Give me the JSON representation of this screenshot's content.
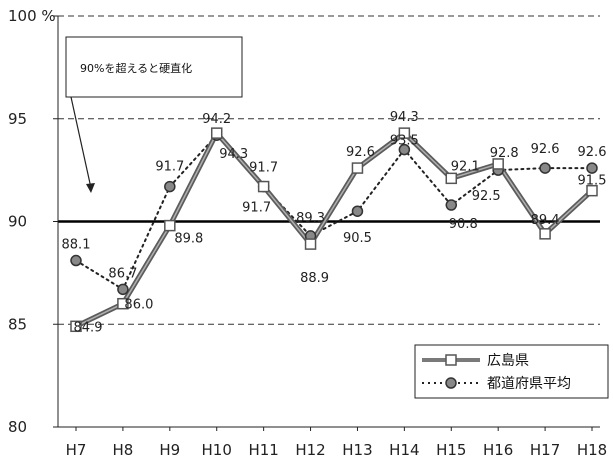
{
  "chart_data": {
    "type": "line",
    "categories": [
      "H7",
      "H8",
      "H9",
      "H10",
      "H11",
      "H12",
      "H13",
      "H14",
      "H15",
      "H16",
      "H17",
      "H18"
    ],
    "series": [
      {
        "name": "広島県",
        "values": [
          84.9,
          86.0,
          89.8,
          94.3,
          91.7,
          88.9,
          92.6,
          94.3,
          92.1,
          92.8,
          89.4,
          91.5
        ],
        "labels": [
          "84.9",
          "86.0",
          "89.8",
          "94.3",
          "91.7",
          "88.9",
          "92.6",
          "94.3",
          "92.1",
          "92.8",
          "89.4",
          "91.5"
        ],
        "style": "solid-thick-square",
        "color": "#7a7a7a"
      },
      {
        "name": "都道府県平均",
        "values": [
          88.1,
          86.7,
          91.7,
          94.2,
          91.7,
          89.3,
          90.5,
          93.5,
          90.8,
          92.5,
          92.6,
          92.6
        ],
        "labels": [
          "88.1",
          "86.7",
          "91.7",
          "94.2",
          "91.7",
          "89.3",
          "90.5",
          "93.5",
          "90.8",
          "92.5",
          "92.6",
          "92.6"
        ],
        "style": "dotted-circle",
        "color": "#222222"
      }
    ],
    "ylim": [
      80,
      100
    ],
    "yticks": [
      "80",
      "85",
      "90",
      "95",
      "100 %"
    ],
    "dashed_gridlines": [
      85,
      95,
      100
    ],
    "reference_line": 90,
    "annotation": "90%を超えると硬直化",
    "legend_position": "bottom-right",
    "colors": {
      "guangdao": "#7a7a7a",
      "average": "#222222",
      "reference": "#000000"
    }
  }
}
